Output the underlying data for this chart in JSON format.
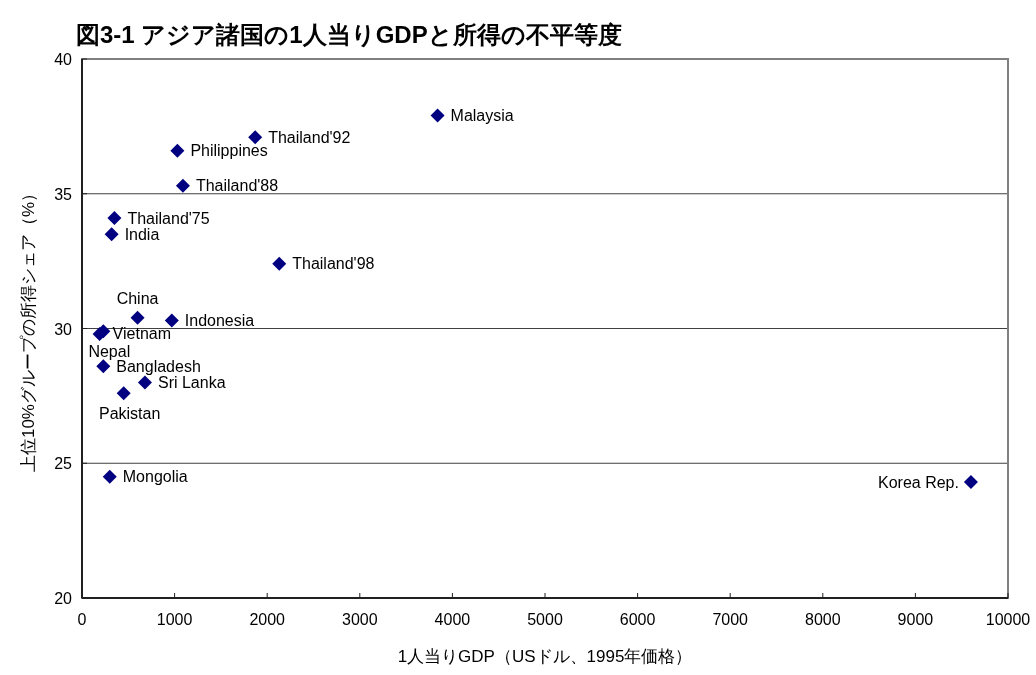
{
  "chart_data": {
    "type": "scatter",
    "title": "図3-1 アジア諸国の1人当りGDPと所得の不平等度",
    "xlabel": "1人当りGDP（USドル、1995年価格）",
    "ylabel": "上位10%グループの所得シェア（%）",
    "x": [
      9600,
      3840,
      1870,
      1030,
      1090,
      350,
      320,
      2130,
      970,
      190,
      600,
      230,
      230,
      680,
      450,
      300
    ],
    "series": [
      {
        "color": "#000080",
        "values": [
          24.3,
          37.9,
          37.1,
          36.6,
          35.3,
          34.1,
          33.5,
          32.4,
          30.3,
          29.8,
          30.4,
          29.9,
          28.6,
          28.0,
          27.6,
          24.5
        ]
      }
    ],
    "marker": "diamond",
    "xlim": [
      0,
      10000
    ],
    "xticks": [
      0,
      1000,
      2000,
      3000,
      4000,
      5000,
      6000,
      7000,
      8000,
      9000,
      10000
    ],
    "ylim": [
      20,
      40
    ],
    "yticks": [
      20,
      25,
      30,
      35,
      40
    ],
    "grid": "y",
    "annotations": [
      {
        "text": "Korea Rep.",
        "x": 9600,
        "y": 24.3
      },
      {
        "text": "Malaysia",
        "x": 3840,
        "y": 37.9
      },
      {
        "text": "Thailand'92",
        "x": 1870,
        "y": 37.1
      },
      {
        "text": "Philippines",
        "x": 1030,
        "y": 36.6
      },
      {
        "text": "Thailand'88",
        "x": 1090,
        "y": 35.3
      },
      {
        "text": "Thailand'75",
        "x": 350,
        "y": 34.1
      },
      {
        "text": "India",
        "x": 320,
        "y": 33.5
      },
      {
        "text": "Thailand'98",
        "x": 2130,
        "y": 32.4
      },
      {
        "text": "Indonesia",
        "x": 970,
        "y": 30.3
      },
      {
        "text": "Vietnam",
        "x": 190,
        "y": 29.8
      },
      {
        "text": "China",
        "x": 600,
        "y": 30.4
      },
      {
        "text": "Nepal",
        "x": 230,
        "y": 29.9
      },
      {
        "text": "Bangladesh",
        "x": 230,
        "y": 28.6
      },
      {
        "text": "Sri Lanka",
        "x": 680,
        "y": 28.0
      },
      {
        "text": "Pakistan",
        "x": 450,
        "y": 27.6
      },
      {
        "text": "Mongolia",
        "x": 300,
        "y": 24.5
      }
    ]
  }
}
